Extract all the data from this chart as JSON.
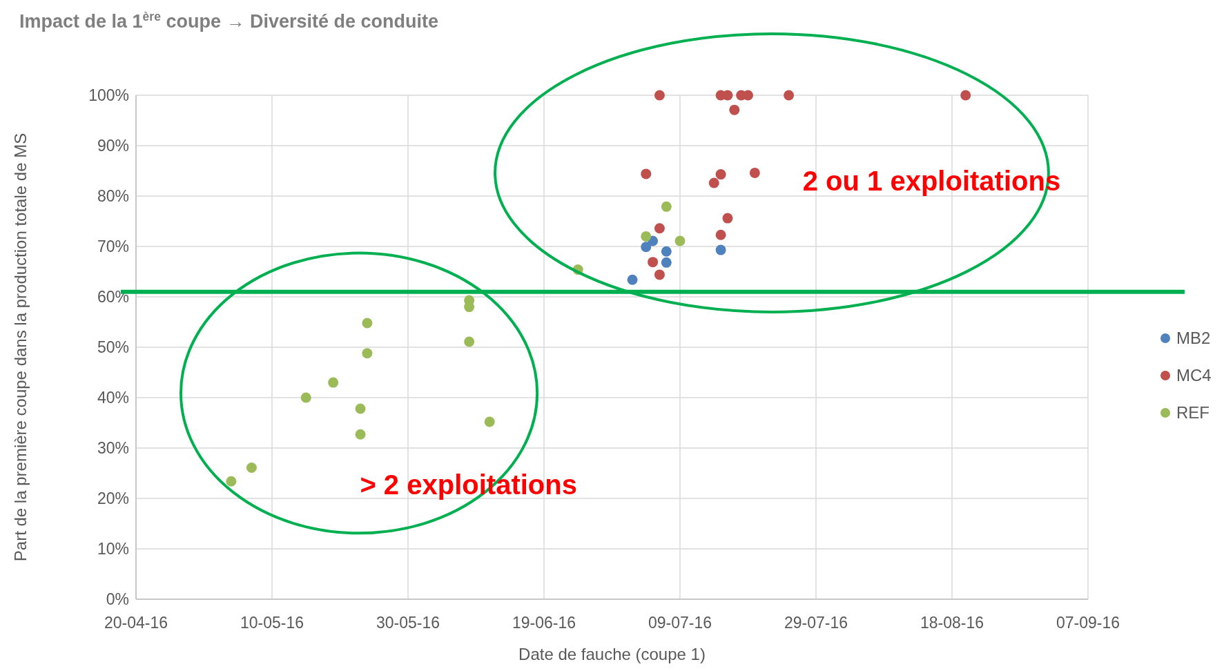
{
  "chart_data": {
    "type": "scatter",
    "title": "Impact de la 1$^{ère}$ coupe → Diversité de conduite",
    "xlabel": "Date de fauche (coupe 1)",
    "ylabel": "Part de la première coupe dans la production totale de MS",
    "series": [
      {
        "name": "MB2",
        "color": "#4f81bd",
        "x": [
          "2016-07-05",
          "2016-07-04",
          "2016-07-07",
          "2016-07-15",
          "2016-07-07",
          "2016-07-02"
        ],
        "values": [
          71.1,
          69.9,
          69.0,
          69.3,
          66.8,
          63.4
        ]
      },
      {
        "name": "MC4",
        "color": "#c0504d",
        "x": [
          "2016-07-06",
          "2016-07-15",
          "2016-07-16",
          "2016-07-18",
          "2016-07-19",
          "2016-07-25",
          "2016-08-20",
          "2016-07-17",
          "2016-07-04",
          "2016-07-15",
          "2016-07-20",
          "2016-07-14",
          "2016-07-16",
          "2016-07-06",
          "2016-07-15",
          "2016-07-05",
          "2016-07-06"
        ],
        "values": [
          100,
          100,
          100,
          100,
          100,
          100,
          100,
          97.1,
          84.4,
          84.3,
          84.6,
          82.6,
          75.6,
          73.6,
          72.3,
          66.9,
          64.4
        ]
      },
      {
        "name": "REF",
        "color": "#9bbb59",
        "x": [
          "2016-05-04",
          "2016-05-07",
          "2016-05-15",
          "2016-05-19",
          "2016-05-23",
          "2016-05-23",
          "2016-05-24",
          "2016-05-24",
          "2016-06-08",
          "2016-06-08",
          "2016-06-08",
          "2016-06-11",
          "2016-06-24",
          "2016-07-04",
          "2016-07-07",
          "2016-07-09"
        ],
        "values": [
          23.4,
          26.1,
          40.0,
          43.0,
          37.8,
          32.7,
          54.8,
          48.8,
          59.3,
          58.0,
          51.1,
          35.2,
          65.4,
          72.0,
          77.9,
          71.1
        ]
      }
    ],
    "xlim": [
      "2016-04-20",
      "2016-09-07"
    ],
    "xticks": [
      {
        "value": "2016-04-20",
        "label": "20-04-16"
      },
      {
        "value": "2016-05-10",
        "label": "10-05-16"
      },
      {
        "value": "2016-05-30",
        "label": "30-05-16"
      },
      {
        "value": "2016-06-19",
        "label": "19-06-16"
      },
      {
        "value": "2016-07-09",
        "label": "09-07-16"
      },
      {
        "value": "2016-07-29",
        "label": "29-07-16"
      },
      {
        "value": "2016-08-18",
        "label": "18-08-16"
      },
      {
        "value": "2016-09-07",
        "label": "07-09-16"
      }
    ],
    "ylim": [
      0,
      100
    ],
    "yticks": [
      {
        "value": 0,
        "label": "0%"
      },
      {
        "value": 10,
        "label": "10%"
      },
      {
        "value": 20,
        "label": "20%"
      },
      {
        "value": 30,
        "label": "30%"
      },
      {
        "value": 40,
        "label": "40%"
      },
      {
        "value": 50,
        "label": "50%"
      },
      {
        "value": 60,
        "label": "60%"
      },
      {
        "value": 70,
        "label": "70%"
      },
      {
        "value": 80,
        "label": "80%"
      },
      {
        "value": 90,
        "label": "90%"
      },
      {
        "value": 100,
        "label": "100%"
      }
    ],
    "ref_lines": [
      {
        "axis": "y",
        "value": 61,
        "color": "#00b050"
      }
    ],
    "annotations": [
      "2 ou 1 exploitations",
      "> 2 exploitations"
    ],
    "grid": true,
    "legend": "right",
    "marker": "circle"
  }
}
